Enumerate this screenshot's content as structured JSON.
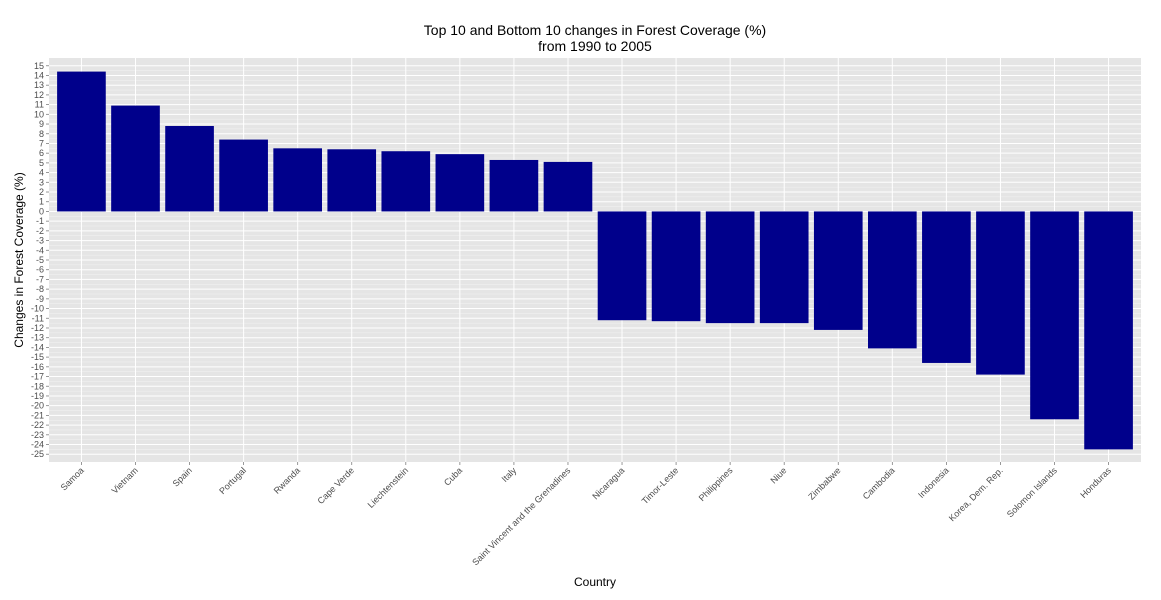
{
  "chart_data": {
    "type": "bar",
    "title": "Top 10 and Bottom 10 changes in Forest Coverage (%)",
    "subtitle": "from 1990 to 2005",
    "xlabel": "Country",
    "ylabel": "Changes in Forest Coverage (%)",
    "ylim": [
      -25.8,
      15.8
    ],
    "yticks": [
      15,
      14,
      13,
      12,
      11,
      10,
      9,
      8,
      7,
      6,
      5,
      4,
      3,
      2,
      1,
      0,
      -1,
      -2,
      -3,
      -4,
      -5,
      -6,
      -7,
      -8,
      -9,
      -10,
      -11,
      -12,
      -13,
      -14,
      -15,
      -16,
      -17,
      -18,
      -19,
      -20,
      -21,
      -22,
      -23,
      -24,
      -25
    ],
    "categories": [
      "Samoa",
      "Vietnam",
      "Spain",
      "Portugal",
      "Rwanda",
      "Cape Verde",
      "Liechtenstein",
      "Cuba",
      "Italy",
      "Saint Vincent and the Grenadines",
      "Nicaragua",
      "Timor-Leste",
      "Philippines",
      "Niue",
      "Zimbabwe",
      "Cambodia",
      "Indonesia",
      "Korea, Dem. Rep.",
      "Solomon Islands",
      "Honduras"
    ],
    "values": [
      14.4,
      10.9,
      8.8,
      7.4,
      6.5,
      6.4,
      6.2,
      5.9,
      5.3,
      5.1,
      -11.2,
      -11.3,
      -11.5,
      -11.5,
      -12.2,
      -14.1,
      -15.6,
      -16.8,
      -21.4,
      -24.5
    ],
    "grid": true,
    "colors": {
      "bar": "#00008B",
      "panel": "#E5E5E5",
      "grid_major": "#FFFFFF",
      "grid_minor": "#F2F2F2"
    }
  }
}
